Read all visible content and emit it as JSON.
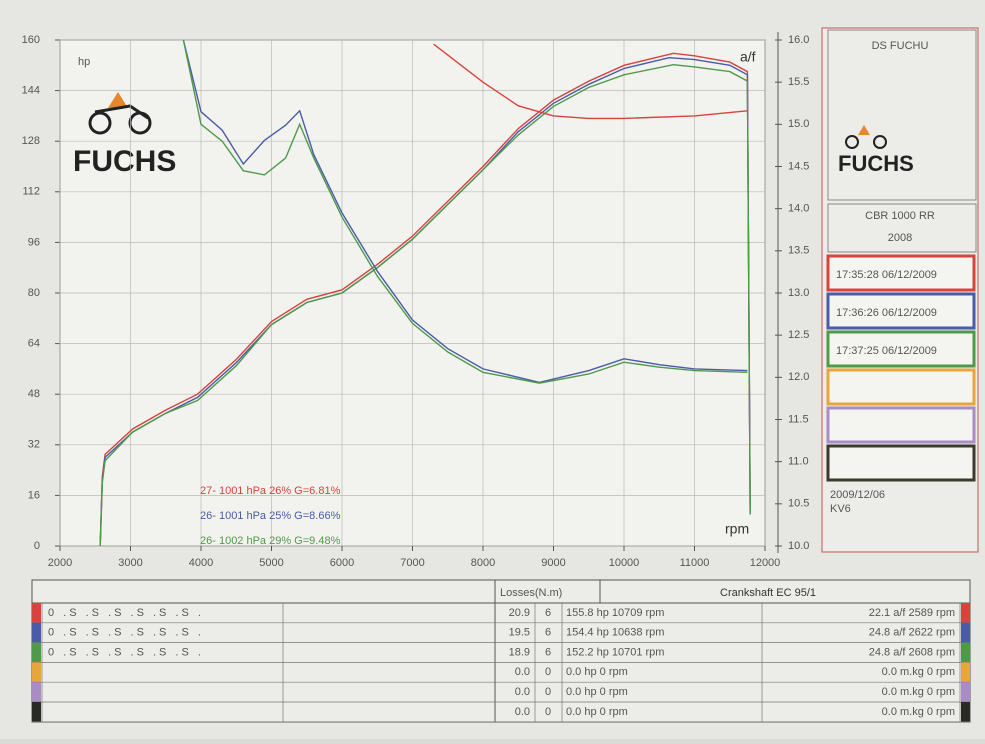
{
  "brand": "FUCHS",
  "chart_data": {
    "type": "line",
    "xlabel": "rpm",
    "ylabel": "hp",
    "y2label": "a/f",
    "xlim": [
      2000,
      12000
    ],
    "xticks": [
      2000,
      3000,
      4000,
      5000,
      6000,
      7000,
      8000,
      9000,
      10000,
      11000,
      12000
    ],
    "ylim": [
      0,
      160
    ],
    "yticks": [
      0,
      16,
      32,
      48,
      64,
      80,
      96,
      112,
      128,
      144,
      160
    ],
    "y2lim": [
      10,
      16
    ],
    "y2ticks": [
      {
        "value": 10,
        "label": "10.0"
      },
      10.5,
      {
        "value": 11,
        "label": "11.0"
      },
      11.5,
      {
        "value": 12,
        "label": "12.0"
      },
      12.5,
      {
        "value": 13,
        "label": "13.0"
      },
      13.5,
      {
        "value": 14,
        "label": "14.0"
      },
      14.5,
      {
        "value": 15,
        "label": "15.0"
      },
      15.5,
      {
        "value": 16,
        "label": "16.0"
      }
    ],
    "grid": true,
    "legend": [
      "27-  1001 hPa  26%    G=6.81%",
      "26-  1001 hPa  25%    G=8.66%",
      "26-  1002 hPa  29%    G=9.48%"
    ],
    "series": [
      {
        "color": "#d8433e",
        "x": [
          2570,
          2600,
          2640,
          3030,
          3500,
          3950,
          4500,
          5000,
          5500,
          6000,
          6500,
          7000,
          7500,
          8000,
          8500,
          9000,
          9500,
          10000,
          10700,
          11000,
          11500,
          11750,
          11790
        ],
        "values": [
          0,
          22,
          29,
          37,
          43,
          48,
          59,
          71,
          78,
          81,
          89,
          98,
          109,
          120,
          132,
          141,
          147,
          152,
          155.8,
          155,
          153,
          150,
          10
        ]
      },
      {
        "color": "#4a5ca8",
        "x": [
          2570,
          2600,
          2640,
          3030,
          3500,
          3950,
          4500,
          5000,
          5500,
          6000,
          6500,
          7000,
          7500,
          8000,
          8500,
          9000,
          9500,
          10000,
          10640,
          11000,
          11500,
          11750,
          11790
        ],
        "values": [
          0,
          21,
          28,
          36,
          42,
          47,
          58,
          70,
          77,
          80,
          88,
          97,
          108,
          119,
          131,
          140,
          146,
          151,
          154.4,
          153.8,
          152,
          149,
          10
        ]
      },
      {
        "color": "#4f9a4a",
        "x": [
          2570,
          2600,
          2640,
          3030,
          3500,
          3950,
          4500,
          5000,
          5500,
          6000,
          6500,
          7000,
          7500,
          8000,
          8500,
          9000,
          9500,
          10000,
          10700,
          11000,
          11500,
          11750,
          11790
        ],
        "values": [
          0,
          20,
          27,
          36,
          42,
          46,
          57,
          70,
          77,
          80,
          88,
          97,
          108,
          119,
          130,
          139,
          145,
          149,
          152.2,
          151.5,
          150,
          147,
          10
        ]
      },
      {
        "color": "#d8433e",
        "axis": "y2",
        "x": [
          7300,
          8000,
          8500,
          9000,
          9500,
          10000,
          11000,
          11750
        ],
        "values": [
          15.95,
          15.5,
          15.22,
          15.1,
          15.07,
          15.07,
          15.1,
          15.16
        ]
      },
      {
        "color": "#4a5ca8",
        "axis": "y2",
        "x": [
          3750,
          4000,
          4300,
          4600,
          4900,
          5200,
          5400,
          5600,
          6000,
          6500,
          7000,
          7500,
          8000,
          8800,
          9500,
          10000,
          10500,
          11000,
          11750
        ],
        "values": [
          16,
          15.15,
          14.93,
          14.53,
          14.81,
          14.99,
          15.16,
          14.64,
          13.95,
          13.26,
          12.68,
          12.34,
          12.1,
          11.94,
          12.08,
          12.22,
          12.15,
          12.1,
          12.08
        ]
      },
      {
        "color": "#4f9a4a",
        "axis": "y2",
        "x": [
          3750,
          4000,
          4300,
          4600,
          4900,
          5200,
          5400,
          5600,
          6000,
          6500,
          7000,
          7500,
          8000,
          8800,
          9500,
          10000,
          10500,
          11000,
          11750
        ],
        "values": [
          16,
          15,
          14.8,
          14.45,
          14.4,
          14.6,
          15,
          14.6,
          13.9,
          13.2,
          12.64,
          12.3,
          12.06,
          11.93,
          12.04,
          12.18,
          12.12,
          12.08,
          12.06
        ]
      }
    ]
  },
  "panel": {
    "title": "DS FUCHU",
    "model": "CBR 1000 RR",
    "year": "2008",
    "runs": [
      "17:35:28  06/12/2009",
      "17:36:26  06/12/2009",
      "17:37:25  06/12/2009"
    ],
    "slot_colors": [
      "#d8433e",
      "#4a5ca8",
      "#4f9a4a",
      "#e8a53a",
      "#a98cc4",
      "#3a3a30"
    ],
    "date": "2009/12/06",
    "code": "KV6"
  },
  "table": {
    "losses_header": "Losses(N.m)",
    "crank_header": "Crankshaft EC 95/1",
    "row_colors": [
      "#d8433e",
      "#4a5ca8",
      "#4f9a4a",
      "#e8a53a",
      "#a98cc4",
      "#2a2a25"
    ],
    "rows": [
      [
        "0 .S .S .S .S .S .S .",
        "20.9",
        "6",
        "155.8 hp 10709 rpm",
        "22.1 a/f 2589 rpm"
      ],
      [
        "0 .S .S .S .S .S .S .",
        "19.5",
        "6",
        "154.4 hp 10638 rpm",
        "24.8 a/f 2622 rpm"
      ],
      [
        "0 .S .S .S .S .S .S .",
        "18.9",
        "6",
        "152.2 hp 10701 rpm",
        "24.8 a/f 2608 rpm"
      ],
      [
        "0.0",
        "0",
        "0.0 hp 0 rpm",
        "0.0 m.kg 0 rpm"
      ],
      [
        "0.0",
        "0",
        "0.0 hp 0 rpm",
        "0.0 m.kg 0 rpm"
      ],
      [
        "0.0",
        "0",
        "0.0 hp 0 rpm",
        "0.0 m.kg 0 rpm"
      ]
    ]
  }
}
